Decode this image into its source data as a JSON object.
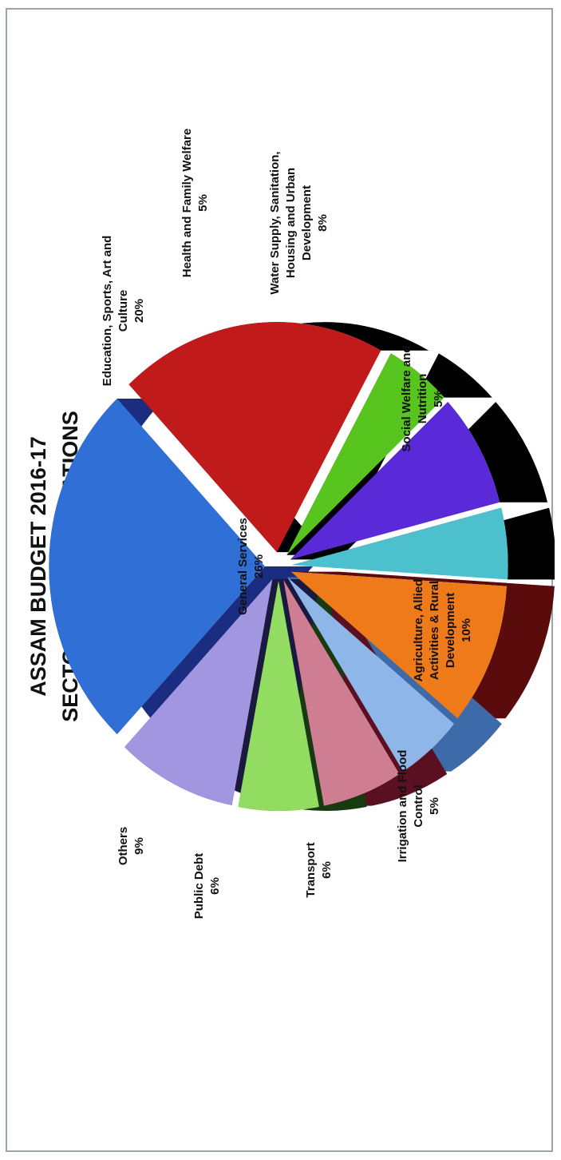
{
  "chart_data": {
    "type": "pie",
    "title": [
      "ASSAM BUDGET 2016-17",
      "SECTOR-WISE ALLOCATIONS"
    ],
    "slices": [
      {
        "label": "General Services",
        "value": 26,
        "pct": "26%",
        "color": "#2f6fd6",
        "side": "#1a2d80"
      },
      {
        "label": "Education, Sports, Art and Culture",
        "value": 20,
        "pct": "20%",
        "color": "#c01a1a",
        "side": "#000000"
      },
      {
        "label": "Health and Family Welfare",
        "value": 5,
        "pct": "5%",
        "color": "#58c41e",
        "side": "#000000"
      },
      {
        "label": "Water Supply, Sanitation, Housing and Urban Development",
        "value": 8,
        "pct": "8%",
        "color": "#5a2ad8",
        "side": "#000000"
      },
      {
        "label": "Social Welfare and Nutrition",
        "value": 5,
        "pct": "5%",
        "color": "#4cc0cc",
        "side": "#000000"
      },
      {
        "label": "Agriculture, Allied Activities & Rural Development",
        "value": 10,
        "pct": "10%",
        "color": "#ef7a1a",
        "side": "#5a0c0c"
      },
      {
        "label": "Irrigation and Flood Control",
        "value": 5,
        "pct": "5%",
        "color": "#8fb6e8",
        "side": "#3d6aa8"
      },
      {
        "label": "Transport",
        "value": 6,
        "pct": "6%",
        "color": "#cf7d92",
        "side": "#5a1020"
      },
      {
        "label": "Public Debt",
        "value": 6,
        "pct": "6%",
        "color": "#92dc62",
        "side": "#173a10"
      },
      {
        "label": "Others",
        "value": 9,
        "pct": "9%",
        "color": "#a296e0",
        "side": "#1a1a40"
      }
    ]
  },
  "labels": [
    {
      "lines": [
        "General Services",
        "26%"
      ]
    },
    {
      "lines": [
        "Education, Sports, Art and",
        "Culture",
        "20%"
      ]
    },
    {
      "lines": [
        "Health and Family Welfare",
        "5%"
      ]
    },
    {
      "lines": [
        "Water Supply, Sanitation,",
        "Housing and Urban",
        "Development",
        "8%"
      ]
    },
    {
      "lines": [
        "Social Welfare and",
        "Nutrition",
        "5%"
      ]
    },
    {
      "lines": [
        "Agriculture, Allied",
        "Activities & Rural",
        "Development",
        "10%"
      ]
    },
    {
      "lines": [
        "Irrigation and Flood",
        "Control",
        "5%"
      ]
    },
    {
      "lines": [
        "Transport",
        "6%"
      ]
    },
    {
      "lines": [
        "Public Debt",
        "6%"
      ]
    },
    {
      "lines": [
        "Others",
        "9%"
      ]
    }
  ]
}
